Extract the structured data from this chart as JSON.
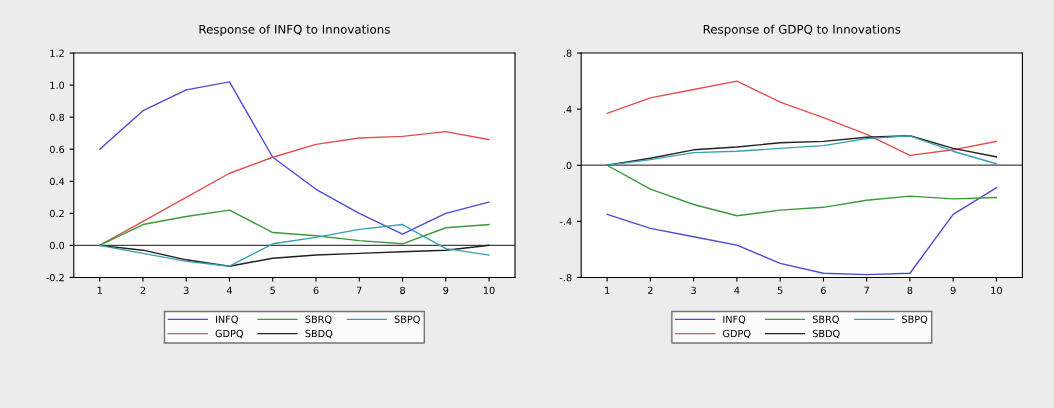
{
  "chart_data": [
    {
      "type": "line",
      "title": "Response of INFQ to Innovations",
      "x": [
        1,
        2,
        3,
        4,
        5,
        6,
        7,
        8,
        9,
        10
      ],
      "xlim": [
        0.4,
        10.6
      ],
      "xticks": [
        1,
        2,
        3,
        4,
        5,
        6,
        7,
        8,
        9,
        10
      ],
      "ylim": [
        -0.2,
        1.2
      ],
      "yticks": [
        {
          "value": -0.2,
          "label": "-0.2"
        },
        {
          "value": 0,
          "label": "0.0"
        },
        {
          "value": 0.2,
          "label": "0.2"
        },
        {
          "value": 0.4,
          "label": "0.4"
        },
        {
          "value": 0.6,
          "label": "0.6"
        },
        {
          "value": 0.8,
          "label": "0.8"
        },
        {
          "value": 1.0,
          "label": "1.0"
        },
        {
          "value": 1.2,
          "label": "1.2"
        }
      ],
      "grid": false,
      "legend": "bottom",
      "ref_lines": [
        {
          "axis": "y",
          "value": 0,
          "color": "#444444"
        }
      ],
      "series": [
        {
          "name": "INFQ",
          "color": "#4b4bd6",
          "values": [
            0.6,
            0.84,
            0.97,
            1.02,
            0.55,
            0.35,
            0.2,
            0.07,
            0.2,
            0.27
          ]
        },
        {
          "name": "GDPQ",
          "color": "#e05050",
          "values": [
            0,
            0.15,
            0.3,
            0.45,
            0.55,
            0.63,
            0.67,
            0.68,
            0.71,
            0.66
          ]
        },
        {
          "name": "SBRQ",
          "color": "#3a9a3a",
          "values": [
            0,
            0.13,
            0.18,
            0.22,
            0.08,
            0.06,
            0.03,
            0.01,
            0.11,
            0.13
          ]
        },
        {
          "name": "SBDQ",
          "color": "#222222",
          "values": [
            0,
            -0.03,
            -0.09,
            -0.13,
            -0.08,
            -0.06,
            -0.05,
            -0.04,
            -0.03,
            0.0
          ]
        },
        {
          "name": "SBPQ",
          "color": "#3aa0b0",
          "values": [
            0,
            -0.05,
            -0.1,
            -0.13,
            0.01,
            0.05,
            0.1,
            0.13,
            -0.02,
            -0.06
          ]
        }
      ]
    },
    {
      "type": "line",
      "title": "Response of GDPQ to Innovations",
      "x": [
        1,
        2,
        3,
        4,
        5,
        6,
        7,
        8,
        9,
        10
      ],
      "xlim": [
        0.4,
        10.6
      ],
      "xticks": [
        1,
        2,
        3,
        4,
        5,
        6,
        7,
        8,
        9,
        10
      ],
      "ylim": [
        -0.8,
        0.8
      ],
      "yticks": [
        {
          "value": -0.8,
          "label": "-.8"
        },
        {
          "value": -0.4,
          "label": "-.4"
        },
        {
          "value": 0,
          "label": ".0"
        },
        {
          "value": 0.4,
          "label": ".4"
        },
        {
          "value": 0.8,
          "label": ".8"
        }
      ],
      "grid": false,
      "legend": "bottom",
      "ref_lines": [
        {
          "axis": "y",
          "value": 0,
          "color": "#444444"
        }
      ],
      "series": [
        {
          "name": "INFQ",
          "color": "#4b4bd6",
          "values": [
            -0.35,
            -0.45,
            -0.51,
            -0.57,
            -0.7,
            -0.77,
            -0.78,
            -0.77,
            -0.35,
            -0.16
          ]
        },
        {
          "name": "GDPQ",
          "color": "#e05050",
          "values": [
            0.37,
            0.48,
            0.54,
            0.6,
            0.45,
            0.34,
            0.22,
            0.07,
            0.11,
            0.17
          ]
        },
        {
          "name": "SBRQ",
          "color": "#3a9a3a",
          "values": [
            0,
            -0.17,
            -0.28,
            -0.36,
            -0.32,
            -0.3,
            -0.25,
            -0.22,
            -0.24,
            -0.23
          ]
        },
        {
          "name": "SBDQ",
          "color": "#222222",
          "values": [
            0,
            0.05,
            0.11,
            0.13,
            0.16,
            0.17,
            0.2,
            0.21,
            0.12,
            0.06
          ]
        },
        {
          "name": "SBPQ",
          "color": "#3aa0b0",
          "values": [
            0,
            0.04,
            0.09,
            0.1,
            0.12,
            0.14,
            0.19,
            0.21,
            0.1,
            0.01
          ]
        }
      ]
    }
  ]
}
